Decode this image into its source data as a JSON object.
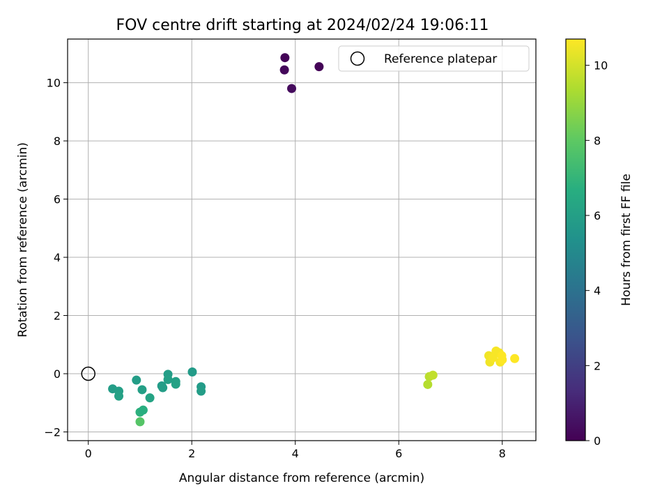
{
  "chart_data": {
    "type": "scatter",
    "title": "FOV centre drift starting at 2024/02/24 19:06:11",
    "xlabel": "Angular distance from reference (arcmin)",
    "ylabel": "Rotation from reference (arcmin)",
    "xlim": [
      -0.4,
      8.65
    ],
    "ylim": [
      -2.3,
      11.5
    ],
    "xticks": [
      0,
      2,
      4,
      6,
      8
    ],
    "yticks": [
      -2,
      0,
      2,
      4,
      6,
      8,
      10
    ],
    "grid": true,
    "legend": {
      "placement": "top-right",
      "entries": [
        "Reference platepar"
      ]
    },
    "reference_point": {
      "x": 0,
      "y": 0
    },
    "colorbar": {
      "label": "Hours from first FF file",
      "min": 0,
      "max": 10.7,
      "ticks": [
        0,
        2,
        4,
        6,
        8,
        10
      ],
      "colormap": "viridis"
    },
    "points": [
      {
        "x": 3.8,
        "y": 10.86,
        "c": 0.1
      },
      {
        "x": 3.79,
        "y": 10.44,
        "c": 0.2
      },
      {
        "x": 4.46,
        "y": 10.55,
        "c": 0.1
      },
      {
        "x": 3.93,
        "y": 9.8,
        "c": 0.3
      },
      {
        "x": 0.47,
        "y": -0.52,
        "c": 5.9
      },
      {
        "x": 0.59,
        "y": -0.6,
        "c": 6.0
      },
      {
        "x": 0.59,
        "y": -0.77,
        "c": 6.1
      },
      {
        "x": 0.93,
        "y": -0.22,
        "c": 5.9
      },
      {
        "x": 1.04,
        "y": -0.55,
        "c": 6.0
      },
      {
        "x": 1.19,
        "y": -0.83,
        "c": 6.2
      },
      {
        "x": 1.42,
        "y": -0.42,
        "c": 5.8
      },
      {
        "x": 1.44,
        "y": -0.48,
        "c": 5.9
      },
      {
        "x": 1.54,
        "y": -0.02,
        "c": 5.9
      },
      {
        "x": 1.54,
        "y": -0.2,
        "c": 6.0
      },
      {
        "x": 1.69,
        "y": -0.27,
        "c": 6.0
      },
      {
        "x": 1.69,
        "y": -0.36,
        "c": 6.1
      },
      {
        "x": 2.01,
        "y": 0.06,
        "c": 5.8
      },
      {
        "x": 2.18,
        "y": -0.45,
        "c": 5.8
      },
      {
        "x": 2.18,
        "y": -0.6,
        "c": 5.9
      },
      {
        "x": 1.0,
        "y": -1.32,
        "c": 6.8
      },
      {
        "x": 1.06,
        "y": -1.25,
        "c": 6.7
      },
      {
        "x": 1.0,
        "y": -1.65,
        "c": 7.8
      },
      {
        "x": 6.56,
        "y": -0.37,
        "c": 9.5
      },
      {
        "x": 6.59,
        "y": -0.1,
        "c": 9.6
      },
      {
        "x": 6.66,
        "y": -0.05,
        "c": 9.7
      },
      {
        "x": 7.74,
        "y": 0.62,
        "c": 10.5
      },
      {
        "x": 7.76,
        "y": 0.4,
        "c": 10.5
      },
      {
        "x": 7.82,
        "y": 0.55,
        "c": 10.6
      },
      {
        "x": 7.88,
        "y": 0.78,
        "c": 10.6
      },
      {
        "x": 7.94,
        "y": 0.72,
        "c": 10.6
      },
      {
        "x": 7.96,
        "y": 0.4,
        "c": 10.6
      },
      {
        "x": 7.99,
        "y": 0.62,
        "c": 10.7
      },
      {
        "x": 8.0,
        "y": 0.48,
        "c": 10.7
      },
      {
        "x": 8.24,
        "y": 0.52,
        "c": 10.7
      }
    ]
  }
}
